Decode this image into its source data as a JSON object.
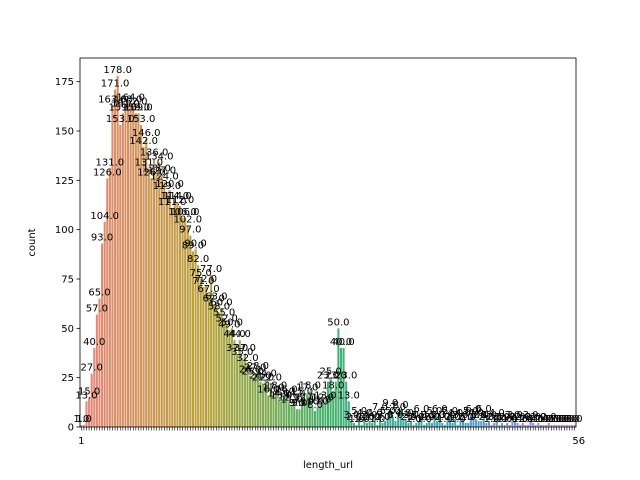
{
  "chart_data": {
    "type": "bar",
    "xlabel": "length_url",
    "ylabel": "count",
    "ylim": [
      0,
      187
    ],
    "yticks": [
      0,
      25,
      50,
      75,
      100,
      125,
      150,
      175
    ],
    "grid": false,
    "legend": "none",
    "x_tick_first": "1",
    "x_tick_last": "56",
    "values": [
      1,
      1,
      13,
      15,
      27,
      40,
      57,
      65,
      93,
      104,
      126,
      131,
      163,
      171,
      178,
      153,
      159,
      161,
      163,
      164,
      162,
      159,
      159,
      153,
      142,
      146,
      131,
      126,
      136,
      128,
      134,
      127,
      124,
      119,
      120,
      111,
      114,
      114,
      112,
      106,
      106,
      102,
      97,
      89,
      90,
      82,
      75,
      71,
      72,
      67,
      77,
      62,
      63,
      58,
      60,
      55,
      52,
      49,
      50,
      44,
      37,
      44,
      35,
      37,
      32,
      26,
      25,
      27,
      28,
      23,
      22,
      24,
      16,
      22,
      17,
      18,
      14,
      13,
      15,
      16,
      12,
      11,
      14,
      9,
      9,
      15,
      12,
      17,
      18,
      10,
      8,
      10,
      11,
      12,
      13,
      23,
      25,
      18,
      23,
      50,
      40,
      40,
      23,
      13,
      3,
      2,
      1,
      5,
      1,
      4,
      2,
      3,
      2,
      4,
      1,
      7,
      2,
      3,
      5,
      9,
      5,
      3,
      7,
      8,
      4,
      4,
      2,
      3,
      1,
      2,
      3,
      6,
      1,
      2,
      3,
      2,
      5,
      3,
      6,
      2,
      1,
      3,
      5,
      2,
      4,
      1,
      3,
      4,
      2,
      2,
      5,
      6,
      4,
      3,
      3,
      6,
      2,
      3,
      1,
      2,
      4,
      1,
      2,
      1,
      2,
      1,
      3,
      3,
      2,
      1,
      2,
      1,
      1,
      3,
      2,
      1,
      2,
      1,
      1,
      1,
      2,
      1,
      1,
      1,
      1,
      1,
      1,
      1,
      1,
      1,
      1
    ],
    "colors": [
      "#e8867c",
      "#b9a238",
      "#45b36d",
      "#3fa8c7",
      "#c47de9"
    ]
  }
}
